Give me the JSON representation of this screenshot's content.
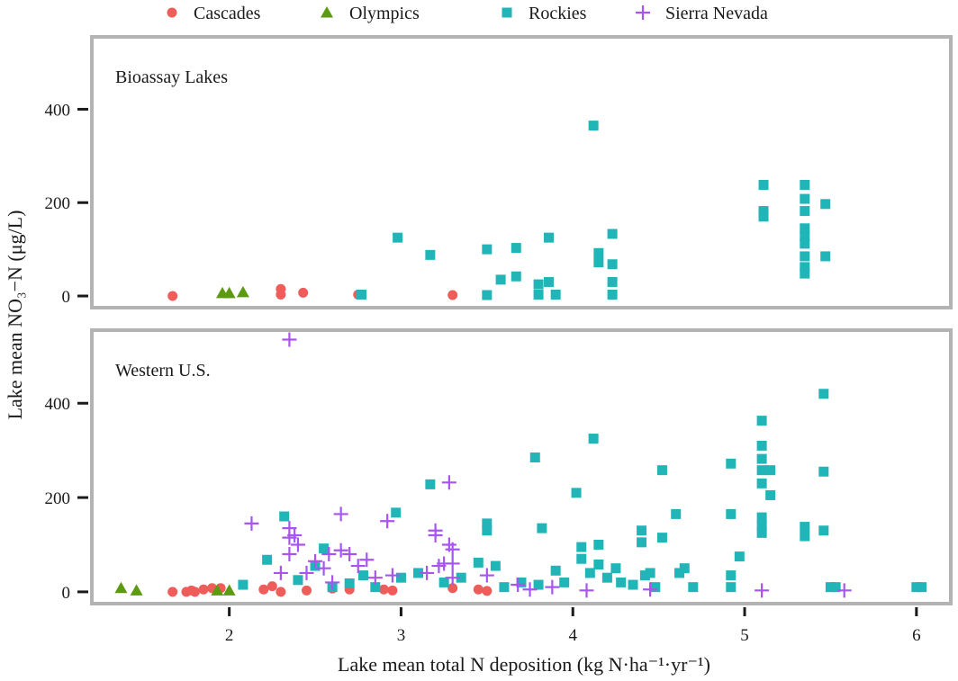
{
  "chart_data": {
    "type": "scatter",
    "xlabel": "Lake mean total N deposition (kg N·ha⁻¹·yr⁻¹)",
    "ylabel": "Lake mean NO₃−N (μg/L)",
    "xlim": [
      1.2,
      6.2
    ],
    "x_ticks": [
      2,
      3,
      4,
      5,
      6
    ],
    "y_ticks": [
      0,
      200,
      400
    ],
    "legend": {
      "placement": "top",
      "entries": [
        {
          "name": "Cascades",
          "color": "#ee5d5a",
          "marker": "circle"
        },
        {
          "name": "Olympics",
          "color": "#5c9a12",
          "marker": "triangle"
        },
        {
          "name": "Rockies",
          "color": "#21b5b8",
          "marker": "square"
        },
        {
          "name": "Sierra Nevada",
          "color": "#a855f0",
          "marker": "plus"
        }
      ]
    },
    "panels": [
      {
        "label": "Bioassay Lakes",
        "ylim": [
          -25,
          555
        ],
        "series": [
          {
            "name": "Cascades",
            "points": [
              [
                1.67,
                0
              ],
              [
                2.3,
                15
              ],
              [
                2.3,
                3
              ],
              [
                2.43,
                7
              ],
              [
                2.75,
                3
              ],
              [
                3.3,
                2
              ]
            ]
          },
          {
            "name": "Olympics",
            "points": [
              [
                1.96,
                6
              ],
              [
                2.0,
                6
              ],
              [
                2.08,
                8
              ]
            ]
          },
          {
            "name": "Rockies",
            "points": [
              [
                2.77,
                3
              ],
              [
                2.98,
                125
              ],
              [
                3.17,
                88
              ],
              [
                3.5,
                100
              ],
              [
                3.5,
                2
              ],
              [
                3.58,
                35
              ],
              [
                3.67,
                103
              ],
              [
                3.67,
                42
              ],
              [
                3.8,
                25
              ],
              [
                3.8,
                3
              ],
              [
                3.86,
                125
              ],
              [
                3.86,
                30
              ],
              [
                3.9,
                3
              ],
              [
                4.12,
                365
              ],
              [
                4.15,
                92
              ],
              [
                4.15,
                72
              ],
              [
                4.23,
                133
              ],
              [
                4.23,
                68
              ],
              [
                4.23,
                30
              ],
              [
                4.23,
                3
              ],
              [
                5.11,
                238
              ],
              [
                5.11,
                182
              ],
              [
                5.11,
                170
              ],
              [
                5.35,
                238
              ],
              [
                5.35,
                208
              ],
              [
                5.35,
                182
              ],
              [
                5.35,
                145
              ],
              [
                5.35,
                128
              ],
              [
                5.35,
                112
              ],
              [
                5.35,
                85
              ],
              [
                5.35,
                62
              ],
              [
                5.35,
                48
              ],
              [
                5.47,
                197
              ],
              [
                5.47,
                85
              ]
            ]
          },
          {
            "name": "Sierra Nevada",
            "points": []
          }
        ]
      },
      {
        "label": "Western U.S.",
        "ylim": [
          -25,
          555
        ],
        "series": [
          {
            "name": "Cascades",
            "points": [
              [
                1.67,
                0
              ],
              [
                1.75,
                0
              ],
              [
                1.78,
                3
              ],
              [
                1.8,
                0
              ],
              [
                1.85,
                5
              ],
              [
                1.9,
                8
              ],
              [
                1.95,
                8
              ],
              [
                2.2,
                5
              ],
              [
                2.25,
                12
              ],
              [
                2.3,
                0
              ],
              [
                2.45,
                3
              ],
              [
                2.6,
                7
              ],
              [
                2.7,
                5
              ],
              [
                2.9,
                5
              ],
              [
                2.95,
                3
              ],
              [
                3.3,
                8
              ],
              [
                3.45,
                5
              ],
              [
                3.5,
                2
              ]
            ]
          },
          {
            "name": "Olympics",
            "points": [
              [
                1.37,
                8
              ],
              [
                1.46,
                3
              ],
              [
                1.93,
                3
              ],
              [
                2.0,
                3
              ]
            ]
          },
          {
            "name": "Rockies",
            "points": [
              [
                2.08,
                15
              ],
              [
                2.22,
                68
              ],
              [
                2.32,
                160
              ],
              [
                2.4,
                25
              ],
              [
                2.5,
                55
              ],
              [
                2.55,
                92
              ],
              [
                2.6,
                10
              ],
              [
                2.7,
                18
              ],
              [
                2.78,
                35
              ],
              [
                2.85,
                10
              ],
              [
                2.97,
                168
              ],
              [
                3.0,
                30
              ],
              [
                3.1,
                40
              ],
              [
                3.17,
                228
              ],
              [
                3.25,
                20
              ],
              [
                3.35,
                30
              ],
              [
                3.45,
                62
              ],
              [
                3.5,
                145
              ],
              [
                3.5,
                130
              ],
              [
                3.55,
                55
              ],
              [
                3.6,
                10
              ],
              [
                3.7,
                20
              ],
              [
                3.78,
                285
              ],
              [
                3.8,
                15
              ],
              [
                3.82,
                135
              ],
              [
                3.9,
                45
              ],
              [
                3.95,
                20
              ],
              [
                4.02,
                210
              ],
              [
                4.05,
                95
              ],
              [
                4.05,
                70
              ],
              [
                4.1,
                40
              ],
              [
                4.12,
                325
              ],
              [
                4.15,
                100
              ],
              [
                4.15,
                58
              ],
              [
                4.2,
                30
              ],
              [
                4.25,
                50
              ],
              [
                4.28,
                20
              ],
              [
                4.35,
                15
              ],
              [
                4.4,
                130
              ],
              [
                4.4,
                105
              ],
              [
                4.42,
                35
              ],
              [
                4.45,
                40
              ],
              [
                4.48,
                10
              ],
              [
                4.52,
                258
              ],
              [
                4.52,
                115
              ],
              [
                4.6,
                165
              ],
              [
                4.62,
                40
              ],
              [
                4.65,
                50
              ],
              [
                4.7,
                10
              ],
              [
                4.92,
                272
              ],
              [
                4.92,
                165
              ],
              [
                4.92,
                35
              ],
              [
                4.92,
                10
              ],
              [
                4.97,
                75
              ],
              [
                5.1,
                363
              ],
              [
                5.1,
                310
              ],
              [
                5.1,
                282
              ],
              [
                5.1,
                258
              ],
              [
                5.1,
                230
              ],
              [
                5.1,
                158
              ],
              [
                5.1,
                140
              ],
              [
                5.1,
                125
              ],
              [
                5.15,
                258
              ],
              [
                5.15,
                205
              ],
              [
                5.35,
                138
              ],
              [
                5.35,
                118
              ],
              [
                5.46,
                420
              ],
              [
                5.46,
                255
              ],
              [
                5.46,
                130
              ],
              [
                5.5,
                10
              ],
              [
                5.53,
                10
              ],
              [
                6.0,
                10
              ],
              [
                6.03,
                10
              ]
            ]
          },
          {
            "name": "Sierra Nevada",
            "points": [
              [
                2.13,
                145
              ],
              [
                2.3,
                40
              ],
              [
                2.35,
                535
              ],
              [
                2.35,
                135
              ],
              [
                2.35,
                115
              ],
              [
                2.35,
                80
              ],
              [
                2.38,
                120
              ],
              [
                2.4,
                100
              ],
              [
                2.45,
                40
              ],
              [
                2.5,
                65
              ],
              [
                2.55,
                50
              ],
              [
                2.58,
                80
              ],
              [
                2.6,
                20
              ],
              [
                2.65,
                165
              ],
              [
                2.65,
                88
              ],
              [
                2.7,
                80
              ],
              [
                2.75,
                55
              ],
              [
                2.8,
                68
              ],
              [
                2.85,
                30
              ],
              [
                2.92,
                150
              ],
              [
                2.95,
                35
              ],
              [
                3.15,
                40
              ],
              [
                3.2,
                130
              ],
              [
                3.2,
                120
              ],
              [
                3.22,
                55
              ],
              [
                3.25,
                60
              ],
              [
                3.28,
                232
              ],
              [
                3.28,
                100
              ],
              [
                3.3,
                90
              ],
              [
                3.3,
                60
              ],
              [
                3.3,
                30
              ],
              [
                3.5,
                35
              ],
              [
                3.68,
                15
              ],
              [
                3.75,
                5
              ],
              [
                3.88,
                10
              ],
              [
                4.08,
                3
              ],
              [
                4.45,
                5
              ],
              [
                5.1,
                3
              ],
              [
                5.58,
                3
              ]
            ]
          }
        ]
      }
    ]
  }
}
